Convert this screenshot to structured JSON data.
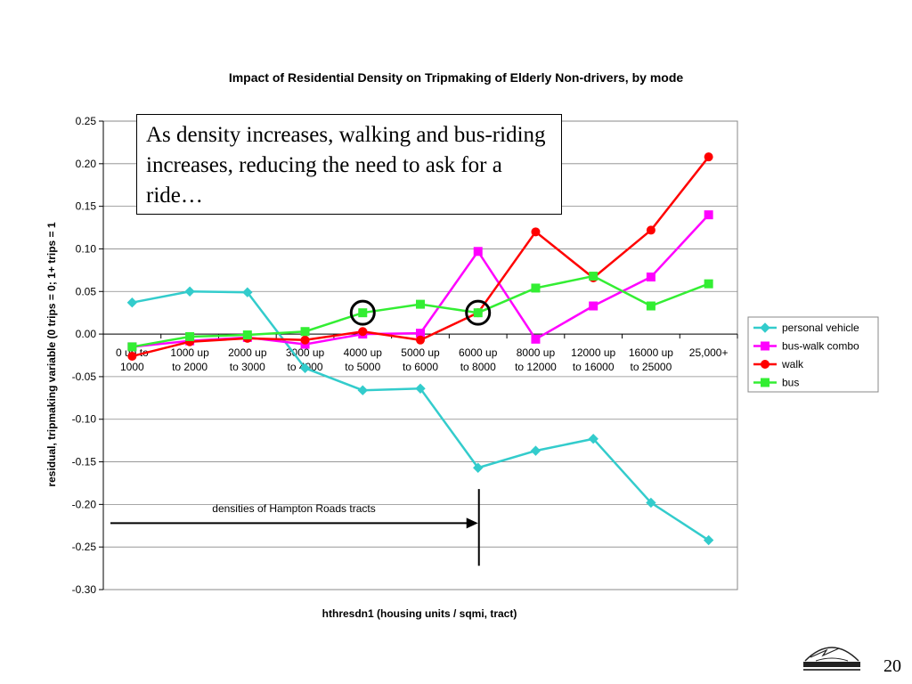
{
  "chart_data": {
    "type": "line",
    "title": "Impact of Residential Density on Tripmaking of Elderly Non-drivers, by mode",
    "xlabel": "hthresdn1 (housing units / sqmi, tract)",
    "ylabel": "residual, tripmaking variable (0 trips = 0; 1+ trips = 1",
    "ylim": [
      -0.3,
      0.25
    ],
    "yticks": [
      "0.25",
      "0.20",
      "0.15",
      "0.10",
      "0.05",
      "0.00",
      "-0.05",
      "-0.10",
      "-0.15",
      "-0.20",
      "-0.25",
      "-0.30"
    ],
    "categories": [
      [
        "0 up to",
        "1000"
      ],
      [
        "1000 up",
        "to 2000"
      ],
      [
        "2000 up",
        "to 3000"
      ],
      [
        "3000 up",
        "to 4000"
      ],
      [
        "4000 up",
        "to 5000"
      ],
      [
        "5000 up",
        "to 6000"
      ],
      [
        "6000 up",
        "to 8000"
      ],
      [
        "8000 up",
        "to 12000"
      ],
      [
        "12000 up",
        "to 16000"
      ],
      [
        "16000 up",
        "to 25000"
      ],
      [
        "25,000+"
      ]
    ],
    "series": [
      {
        "name": "personal vehicle",
        "color": "#33CCCC",
        "marker": "diamond",
        "values": [
          0.037,
          0.05,
          0.049,
          -0.04,
          -0.066,
          -0.064,
          -0.157,
          -0.137,
          -0.123,
          -0.198,
          -0.242
        ]
      },
      {
        "name": "bus-walk combo",
        "color": "#FF00FF",
        "marker": "square",
        "values": [
          -0.015,
          -0.008,
          -0.004,
          -0.012,
          0.0,
          0.001,
          0.097,
          -0.006,
          0.033,
          0.067,
          0.14
        ]
      },
      {
        "name": "walk",
        "color": "#FF0000",
        "marker": "circle",
        "values": [
          -0.026,
          -0.009,
          -0.005,
          -0.007,
          0.003,
          -0.007,
          0.025,
          0.12,
          0.066,
          0.122,
          0.208
        ]
      },
      {
        "name": "bus",
        "color": "#33EE33",
        "marker": "square",
        "values": [
          -0.015,
          -0.003,
          -0.001,
          0.003,
          0.025,
          0.035,
          0.025,
          0.054,
          0.068,
          0.033,
          0.059
        ]
      }
    ],
    "legend_position": "right",
    "grid": true,
    "highlight_circles": [
      4,
      6
    ],
    "annotation": "densities of Hampton Roads tracts",
    "annotation_arrow_end_category": 6.5
  },
  "callout": {
    "text": "As density increases, walking and bus-riding increases, reducing the need to ask for a ride…"
  },
  "footer": {
    "page_number": "20",
    "logo_icon": "hampton-roads-logo-icon"
  }
}
